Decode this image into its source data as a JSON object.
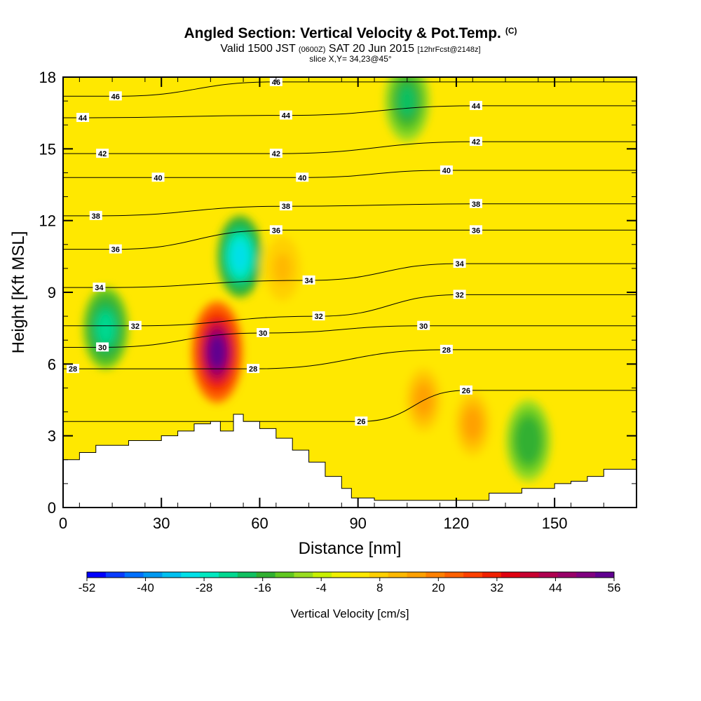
{
  "header": {
    "title": "Angled Section: Vertical Velocity & Pot.Temp.",
    "title_mark": "(C)",
    "valid_prefix": "Valid 1500 JST",
    "valid_utc": "(0600Z)",
    "valid_date": "SAT 20 Jun 2015",
    "forecast": "[12hrFcst@2148z]",
    "slice": "slice X,Y= 34,23@45°"
  },
  "chart_data": {
    "type": "heatmap",
    "xlabel": "Distance [nm]",
    "ylabel": "Height [Kft MSL]",
    "xlim": [
      0,
      175
    ],
    "ylim": [
      0,
      18
    ],
    "x_ticks": [
      "0",
      "30",
      "60",
      "90",
      "120",
      "150"
    ],
    "y_ticks": [
      "0",
      "3",
      "6",
      "9",
      "12",
      "15",
      "18"
    ],
    "colorbar": {
      "title": "Vertical Velocity [cm/s]",
      "levels": [
        -52,
        -48,
        -44,
        -40,
        -36,
        -32,
        -28,
        -24,
        -20,
        -16,
        -12,
        -8,
        -4,
        0,
        4,
        8,
        12,
        16,
        20,
        24,
        28,
        32,
        36,
        40,
        44,
        48,
        52,
        56
      ],
      "tick_labels": [
        "-52",
        "-40",
        "-28",
        "-16",
        "-4",
        "8",
        "20",
        "32",
        "44",
        "56"
      ],
      "colors": [
        "#0000ff",
        "#0a3cff",
        "#0070ff",
        "#0098f0",
        "#00c0f0",
        "#00e0e8",
        "#00e8c0",
        "#00d890",
        "#10c060",
        "#30b030",
        "#60c820",
        "#98dc20",
        "#c8f000",
        "#f0f000",
        "#ffe800",
        "#ffd000",
        "#ffb800",
        "#ffa000",
        "#ff8000",
        "#ff6000",
        "#ff4000",
        "#f02000",
        "#e00010",
        "#c80030",
        "#b00050",
        "#980068",
        "#800080",
        "#600090"
      ]
    },
    "terrain_profile": {
      "x": [
        0,
        5,
        10,
        20,
        30,
        35,
        40,
        45,
        48,
        52,
        55,
        60,
        65,
        70,
        75,
        80,
        85,
        88,
        95,
        100,
        110,
        115,
        125,
        130,
        135,
        140,
        145,
        150,
        155,
        160,
        165,
        170,
        175
      ],
      "y": [
        2.0,
        2.3,
        2.6,
        2.8,
        3.0,
        3.2,
        3.5,
        3.6,
        3.2,
        3.9,
        3.6,
        3.3,
        2.9,
        2.4,
        1.9,
        1.3,
        0.8,
        0.4,
        0.3,
        0.3,
        0.3,
        0.3,
        0.3,
        0.6,
        0.6,
        0.8,
        0.8,
        1.0,
        1.1,
        1.3,
        1.6,
        1.6,
        1.7
      ]
    },
    "velocity_features": [
      {
        "x": 47,
        "y": 6.5,
        "value": 56
      },
      {
        "x": 54,
        "y": 10.5,
        "value": -30
      },
      {
        "x": 13,
        "y": 7.5,
        "value": -22
      },
      {
        "x": 142,
        "y": 2.8,
        "value": -16
      },
      {
        "x": 110,
        "y": 4.5,
        "value": 18
      },
      {
        "x": 125,
        "y": 3.5,
        "value": 16
      },
      {
        "x": 67,
        "y": 10,
        "value": 14
      },
      {
        "x": 105,
        "y": 17,
        "value": -18
      }
    ],
    "theta_contour_labels": [
      {
        "text": "46",
        "x": 16,
        "y": 17.2
      },
      {
        "text": "46",
        "x": 65,
        "y": 17.8
      },
      {
        "text": "44",
        "x": 6,
        "y": 16.3
      },
      {
        "text": "44",
        "x": 68,
        "y": 16.4
      },
      {
        "text": "44",
        "x": 126,
        "y": 16.8
      },
      {
        "text": "42",
        "x": 12,
        "y": 14.8
      },
      {
        "text": "42",
        "x": 65,
        "y": 14.8
      },
      {
        "text": "42",
        "x": 126,
        "y": 15.3
      },
      {
        "text": "40",
        "x": 29,
        "y": 13.8
      },
      {
        "text": "40",
        "x": 73,
        "y": 13.8
      },
      {
        "text": "40",
        "x": 117,
        "y": 14.1
      },
      {
        "text": "38",
        "x": 10,
        "y": 12.2
      },
      {
        "text": "38",
        "x": 68,
        "y": 12.6
      },
      {
        "text": "38",
        "x": 126,
        "y": 12.7
      },
      {
        "text": "36",
        "x": 16,
        "y": 10.8
      },
      {
        "text": "36",
        "x": 65,
        "y": 11.6
      },
      {
        "text": "36",
        "x": 126,
        "y": 11.6
      },
      {
        "text": "34",
        "x": 11,
        "y": 9.2
      },
      {
        "text": "34",
        "x": 75,
        "y": 9.5
      },
      {
        "text": "34",
        "x": 121,
        "y": 10.2
      },
      {
        "text": "32",
        "x": 22,
        "y": 7.6
      },
      {
        "text": "32",
        "x": 78,
        "y": 8.0
      },
      {
        "text": "32",
        "x": 121,
        "y": 8.9
      },
      {
        "text": "30",
        "x": 12,
        "y": 6.7
      },
      {
        "text": "30",
        "x": 61,
        "y": 7.3
      },
      {
        "text": "30",
        "x": 110,
        "y": 7.6
      },
      {
        "text": "28",
        "x": 3,
        "y": 5.8
      },
      {
        "text": "28",
        "x": 58,
        "y": 5.8
      },
      {
        "text": "28",
        "x": 117,
        "y": 6.6
      },
      {
        "text": "26",
        "x": 91,
        "y": 3.6
      },
      {
        "text": "26",
        "x": 123,
        "y": 4.9
      }
    ]
  }
}
